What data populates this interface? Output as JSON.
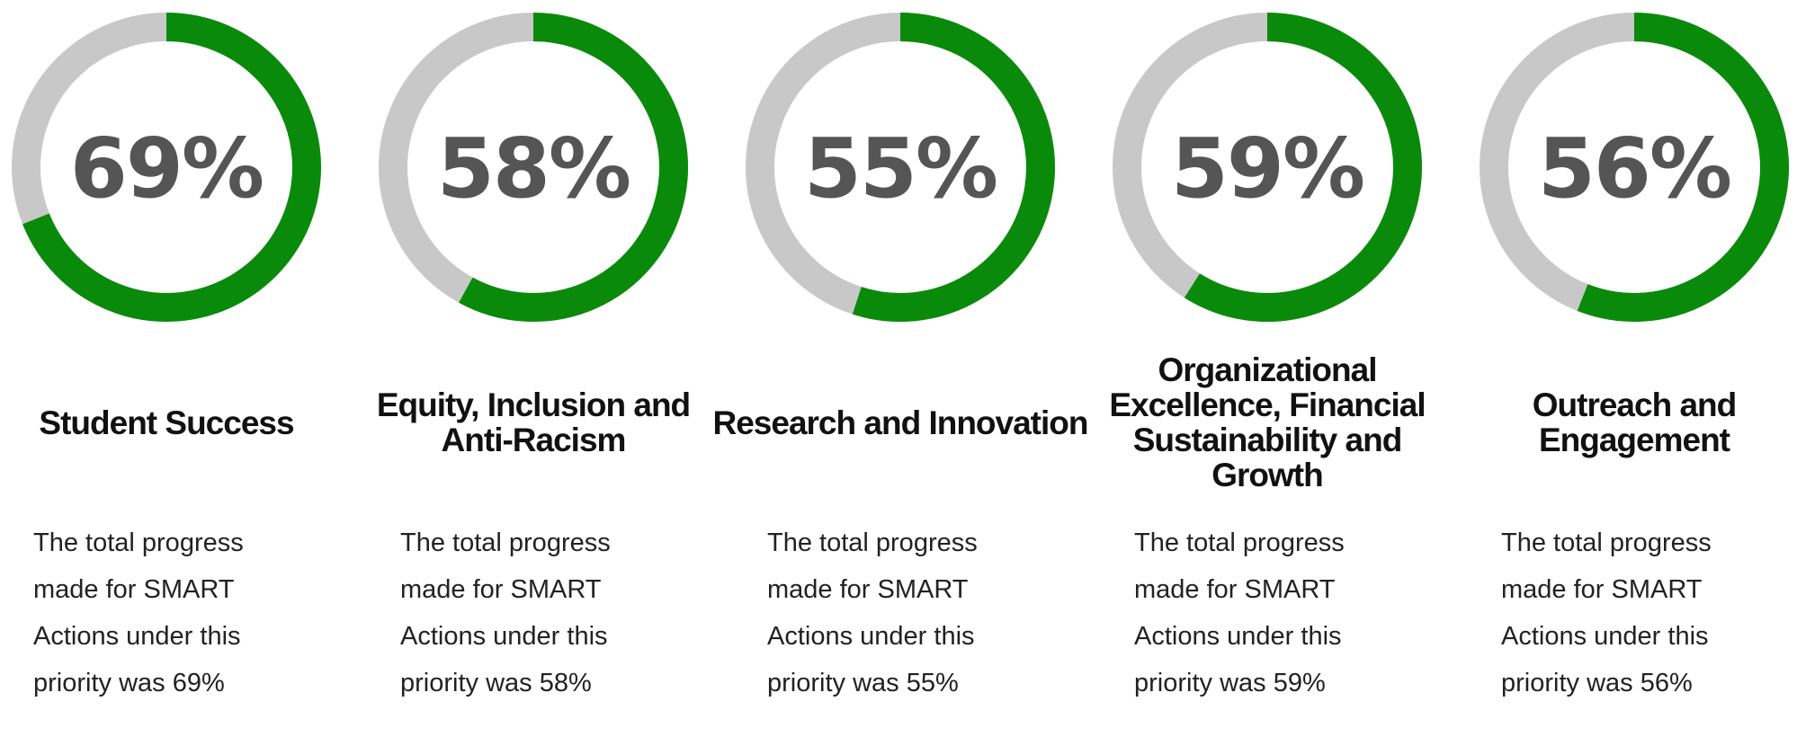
{
  "chart_data": [
    {
      "type": "donut",
      "value": 69,
      "value_label": "69%",
      "title": "Student Success",
      "description": "The total progress made for SMART Actions under this priority was 69%",
      "color": "#0a8a0a",
      "track_color": "#c8c8c8"
    },
    {
      "type": "donut",
      "value": 58,
      "value_label": "58%",
      "title": "Equity, Inclusion and Anti-Racism",
      "description": "The total progress made for SMART Actions under this priority was 58%",
      "color": "#0a8a0a",
      "track_color": "#c8c8c8"
    },
    {
      "type": "donut",
      "value": 55,
      "value_label": "55%",
      "title": "Research and Innovation",
      "description": "The total progress made for SMART Actions under this priority was 55%",
      "color": "#0a8a0a",
      "track_color": "#c8c8c8"
    },
    {
      "type": "donut",
      "value": 59,
      "value_label": "59%",
      "title": "Organizational Excellence, Financial Sustainability and Growth",
      "description": "The total progress made for SMART Actions under this priority was 59%",
      "color": "#0a8a0a",
      "track_color": "#c8c8c8"
    },
    {
      "type": "donut",
      "value": 56,
      "value_label": "56%",
      "title": "Outreach and Engagement",
      "description": "The total progress made for SMART Actions under this priority was 56%",
      "color": "#0a8a0a",
      "track_color": "#c8c8c8"
    }
  ]
}
